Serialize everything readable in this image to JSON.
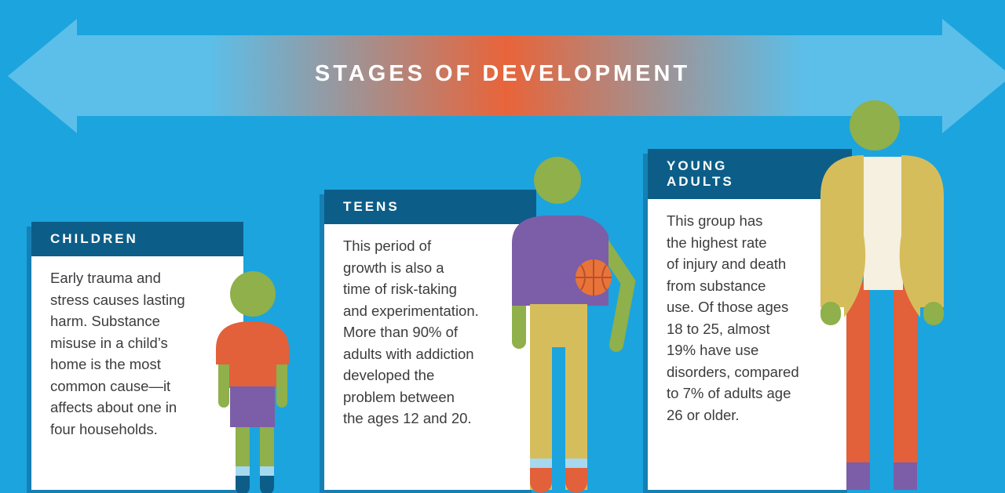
{
  "header": {
    "title": "STAGES OF DEVELOPMENT"
  },
  "stages": [
    {
      "heading": "CHILDREN",
      "body": [
        "Early trauma and",
        "stress causes lasting",
        "harm. Substance",
        "misuse in a child’s",
        "home is the most",
        "common cause—it",
        "affects about one in",
        "four households."
      ]
    },
    {
      "heading": "TEENS",
      "body": [
        "This period of",
        "growth is also a",
        "time of risk-taking",
        "and experimentation.",
        "More than 90% of",
        "adults with addiction",
        "developed the",
        "problem between",
        "the ages 12 and 20."
      ]
    },
    {
      "heading": "YOUNG ADULTS",
      "body": [
        "This group has",
        "the highest rate",
        "of injury and death",
        "from substance",
        "use. Of those ages",
        "18 to 25, almost",
        "19% have use",
        "disorders, compared",
        "to 7% of adults age",
        "26 or older."
      ]
    }
  ]
}
